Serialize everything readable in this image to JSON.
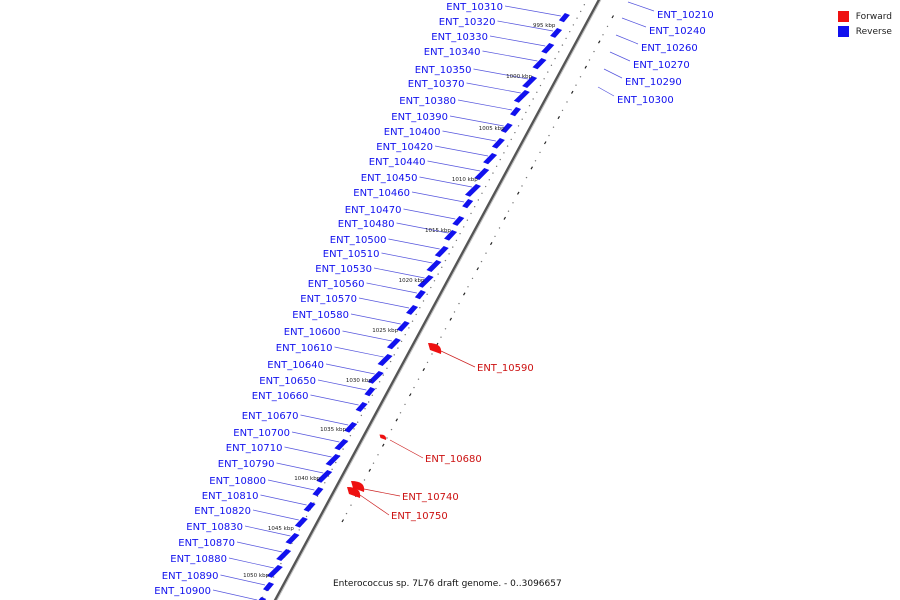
{
  "legend": {
    "items": [
      {
        "label": "Forward",
        "color": "#ee1111"
      },
      {
        "label": "Reverse",
        "color": "#1111ee"
      }
    ]
  },
  "caption": "Enterococcus sp. 7L76 draft genome. - 0..3096657",
  "colors": {
    "forward": "#ee1111",
    "reverse": "#1111ee",
    "backbone": "#555555"
  },
  "ticks": [
    {
      "label": "995 kbp"
    },
    {
      "label": "1000 kbp"
    },
    {
      "label": "1005 kbp"
    },
    {
      "label": "1010 kbp"
    },
    {
      "label": "1015 kbp"
    },
    {
      "label": "1020 kbp"
    },
    {
      "label": "1025 kbp"
    },
    {
      "label": "1030 kbp"
    },
    {
      "label": "1035 kbp"
    },
    {
      "label": "1040 kbp"
    },
    {
      "label": "1045 kbp"
    },
    {
      "label": "1050 kbp"
    }
  ],
  "reverse_genes": [
    "ENT_10310",
    "ENT_10320",
    "ENT_10330",
    "ENT_10340",
    "ENT_10350",
    "ENT_10370",
    "ENT_10380",
    "ENT_10390",
    "ENT_10400",
    "ENT_10420",
    "ENT_10440",
    "ENT_10450",
    "ENT_10460",
    "ENT_10470",
    "ENT_10480",
    "ENT_10500",
    "ENT_10510",
    "ENT_10530",
    "ENT_10560",
    "ENT_10570",
    "ENT_10580",
    "ENT_10600",
    "ENT_10610",
    "ENT_10640",
    "ENT_10650",
    "ENT_10660",
    "ENT_10670",
    "ENT_10700",
    "ENT_10710",
    "ENT_10790",
    "ENT_10800",
    "ENT_10810",
    "ENT_10820",
    "ENT_10830",
    "ENT_10870",
    "ENT_10880",
    "ENT_10890",
    "ENT_10900"
  ],
  "upper_right_genes": [
    "ENT_10210",
    "ENT_10240",
    "ENT_10260",
    "ENT_10270",
    "ENT_10290",
    "ENT_10300"
  ],
  "forward_genes": [
    "ENT_10590",
    "ENT_10680",
    "ENT_10740",
    "ENT_10750"
  ]
}
